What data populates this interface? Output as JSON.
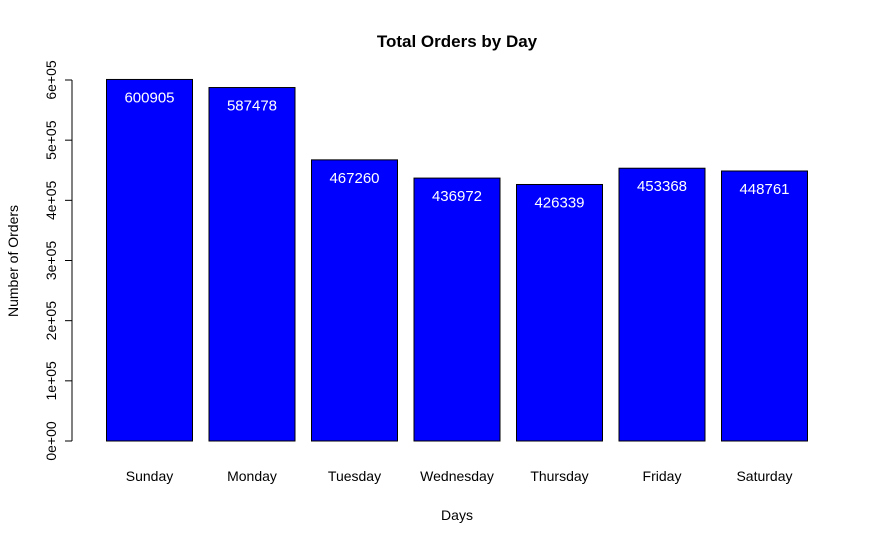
{
  "chart_data": {
    "type": "bar",
    "title": "Total Orders by Day",
    "xlabel": "Days",
    "ylabel": "Number of Orders",
    "categories": [
      "Sunday",
      "Monday",
      "Tuesday",
      "Wednesday",
      "Thursday",
      "Friday",
      "Saturday"
    ],
    "values": [
      600905,
      587478,
      467260,
      436972,
      426339,
      453368,
      448761
    ],
    "data_labels": [
      "600905",
      "587478",
      "467260",
      "436972",
      "426339",
      "453368",
      "448761"
    ],
    "ylim": [
      0,
      600000
    ],
    "yticks": [
      0,
      100000,
      200000,
      300000,
      400000,
      500000,
      600000
    ],
    "ytick_labels": [
      "0e+00",
      "1e+05",
      "2e+05",
      "3e+05",
      "4e+05",
      "5e+05",
      "6e+05"
    ],
    "grid": false,
    "legend": "none",
    "bar_color": "#0000ff"
  }
}
